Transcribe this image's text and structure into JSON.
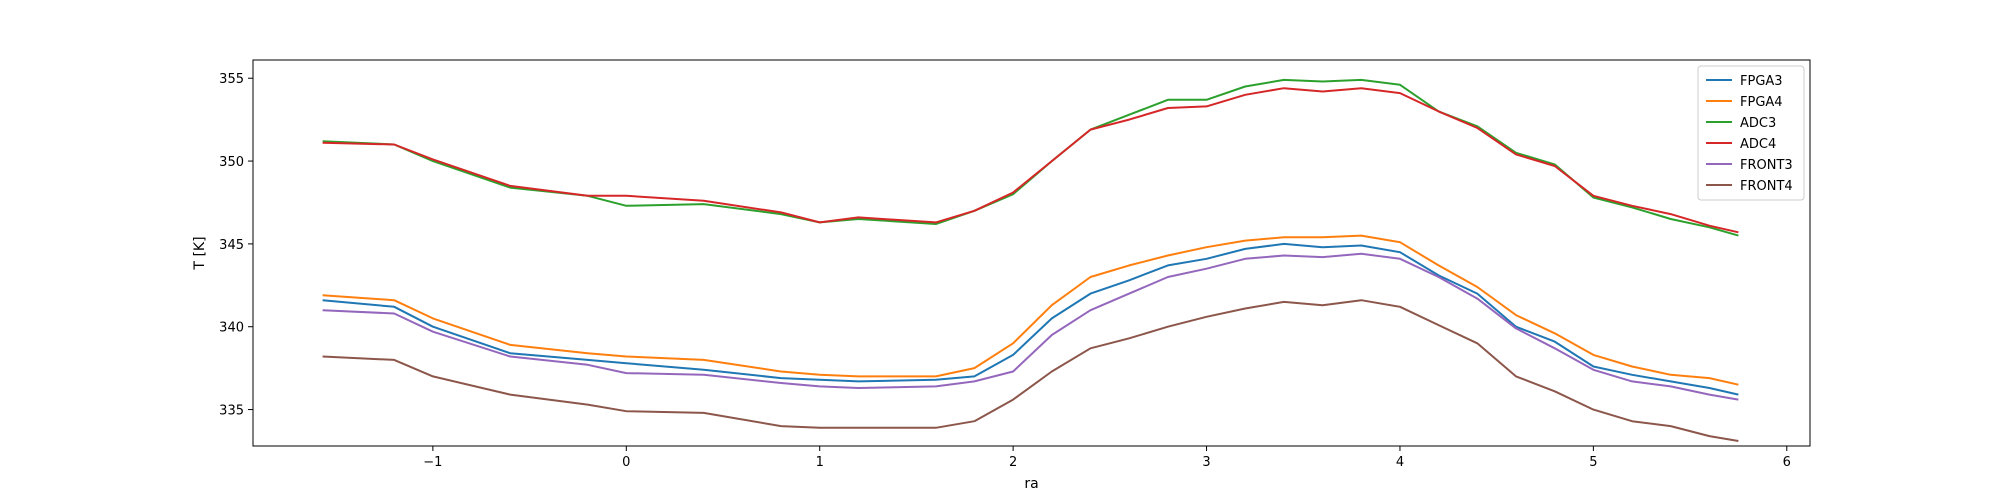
{
  "chart_data": {
    "type": "line",
    "xlabel": "ra",
    "ylabel": "T [K]",
    "xlim": [
      -1.93,
      6.12
    ],
    "ylim": [
      332.8,
      356.1
    ],
    "xticks": [
      -1,
      0,
      1,
      2,
      3,
      4,
      5,
      6
    ],
    "xtick_labels": [
      "−1",
      "0",
      "1",
      "2",
      "3",
      "4",
      "5",
      "6"
    ],
    "yticks": [
      335,
      340,
      345,
      350,
      355
    ],
    "ytick_labels": [
      "335",
      "340",
      "345",
      "350",
      "355"
    ],
    "grid": false,
    "legend_position": "top-right",
    "series": [
      {
        "name": "FPGA3",
        "color": "#1f77b4",
        "x": [
          -1.57,
          -1.2,
          -1.0,
          -0.6,
          -0.2,
          0.0,
          0.4,
          0.8,
          1.0,
          1.2,
          1.6,
          1.8,
          2.0,
          2.2,
          2.4,
          2.6,
          2.8,
          3.0,
          3.2,
          3.4,
          3.6,
          3.8,
          4.0,
          4.2,
          4.4,
          4.6,
          4.8,
          5.0,
          5.2,
          5.4,
          5.6,
          5.75
        ],
        "y": [
          341.6,
          341.2,
          340.0,
          338.4,
          338.0,
          337.8,
          337.4,
          336.9,
          336.8,
          336.7,
          336.8,
          337.0,
          338.3,
          340.5,
          342.0,
          342.8,
          343.7,
          344.1,
          344.7,
          345.0,
          344.8,
          344.9,
          344.5,
          343.1,
          342.0,
          340.0,
          339.1,
          337.6,
          337.1,
          336.7,
          336.3,
          335.9
        ]
      },
      {
        "name": "FPGA4",
        "color": "#ff7f0e",
        "x": [
          -1.57,
          -1.2,
          -1.0,
          -0.6,
          -0.2,
          0.0,
          0.4,
          0.8,
          1.0,
          1.2,
          1.6,
          1.8,
          2.0,
          2.2,
          2.4,
          2.6,
          2.8,
          3.0,
          3.2,
          3.4,
          3.6,
          3.8,
          4.0,
          4.2,
          4.4,
          4.6,
          4.8,
          5.0,
          5.2,
          5.4,
          5.6,
          5.75
        ],
        "y": [
          341.9,
          341.6,
          340.5,
          338.9,
          338.4,
          338.2,
          338.0,
          337.3,
          337.1,
          337.0,
          337.0,
          337.5,
          339.0,
          341.3,
          343.0,
          343.7,
          344.3,
          344.8,
          345.2,
          345.4,
          345.4,
          345.5,
          345.1,
          343.7,
          342.4,
          340.7,
          339.6,
          338.3,
          337.6,
          337.1,
          336.9,
          336.5
        ]
      },
      {
        "name": "ADC3",
        "color": "#2ca02c",
        "x": [
          -1.57,
          -1.2,
          -1.0,
          -0.6,
          -0.2,
          0.0,
          0.4,
          0.8,
          1.0,
          1.2,
          1.6,
          1.8,
          2.0,
          2.2,
          2.4,
          2.6,
          2.8,
          3.0,
          3.2,
          3.4,
          3.6,
          3.8,
          4.0,
          4.2,
          4.4,
          4.6,
          4.8,
          5.0,
          5.2,
          5.4,
          5.6,
          5.75
        ],
        "y": [
          351.2,
          351.0,
          350.0,
          348.4,
          347.9,
          347.3,
          347.4,
          346.8,
          346.3,
          346.5,
          346.2,
          347.0,
          348.0,
          350.0,
          351.9,
          352.8,
          353.7,
          353.7,
          354.5,
          354.9,
          354.8,
          354.9,
          354.6,
          353.0,
          352.1,
          350.5,
          349.8,
          347.8,
          347.2,
          346.5,
          346.0,
          345.5
        ]
      },
      {
        "name": "ADC4",
        "color": "#d62728",
        "x": [
          -1.57,
          -1.2,
          -1.0,
          -0.6,
          -0.2,
          0.0,
          0.4,
          0.8,
          1.0,
          1.2,
          1.6,
          1.8,
          2.0,
          2.2,
          2.4,
          2.6,
          2.8,
          3.0,
          3.2,
          3.4,
          3.6,
          3.8,
          4.0,
          4.2,
          4.4,
          4.6,
          4.8,
          5.0,
          5.2,
          5.4,
          5.6,
          5.75
        ],
        "y": [
          351.1,
          351.0,
          350.1,
          348.5,
          347.9,
          347.9,
          347.6,
          346.9,
          346.3,
          346.6,
          346.3,
          347.0,
          348.1,
          350.0,
          351.9,
          352.5,
          353.2,
          353.3,
          354.0,
          354.4,
          354.2,
          354.4,
          354.1,
          353.0,
          352.0,
          350.4,
          349.7,
          347.9,
          347.3,
          346.8,
          346.1,
          345.7
        ]
      },
      {
        "name": "FRONT3",
        "color": "#9467bd",
        "x": [
          -1.57,
          -1.2,
          -1.0,
          -0.6,
          -0.2,
          0.0,
          0.4,
          0.8,
          1.0,
          1.2,
          1.6,
          1.8,
          2.0,
          2.2,
          2.4,
          2.6,
          2.8,
          3.0,
          3.2,
          3.4,
          3.6,
          3.8,
          4.0,
          4.2,
          4.4,
          4.6,
          4.8,
          5.0,
          5.2,
          5.4,
          5.6,
          5.75
        ],
        "y": [
          341.0,
          340.8,
          339.7,
          338.2,
          337.7,
          337.2,
          337.1,
          336.6,
          336.4,
          336.3,
          336.4,
          336.7,
          337.3,
          339.5,
          341.0,
          342.0,
          343.0,
          343.5,
          344.1,
          344.3,
          344.2,
          344.4,
          344.1,
          343.0,
          341.7,
          339.9,
          338.7,
          337.4,
          336.7,
          336.4,
          335.9,
          335.6
        ]
      },
      {
        "name": "FRONT4",
        "color": "#8c564b",
        "x": [
          -1.57,
          -1.2,
          -1.0,
          -0.6,
          -0.2,
          0.0,
          0.4,
          0.8,
          1.0,
          1.2,
          1.6,
          1.8,
          2.0,
          2.2,
          2.4,
          2.6,
          2.8,
          3.0,
          3.2,
          3.4,
          3.6,
          3.8,
          4.0,
          4.2,
          4.4,
          4.6,
          4.8,
          5.0,
          5.2,
          5.4,
          5.6,
          5.75
        ],
        "y": [
          338.2,
          338.0,
          337.0,
          335.9,
          335.3,
          334.9,
          334.8,
          334.0,
          333.9,
          333.9,
          333.9,
          334.3,
          335.6,
          337.3,
          338.7,
          339.3,
          340.0,
          340.6,
          341.1,
          341.5,
          341.3,
          341.6,
          341.2,
          340.1,
          339.0,
          337.0,
          336.1,
          335.0,
          334.3,
          334.0,
          333.4,
          333.1
        ]
      }
    ]
  }
}
